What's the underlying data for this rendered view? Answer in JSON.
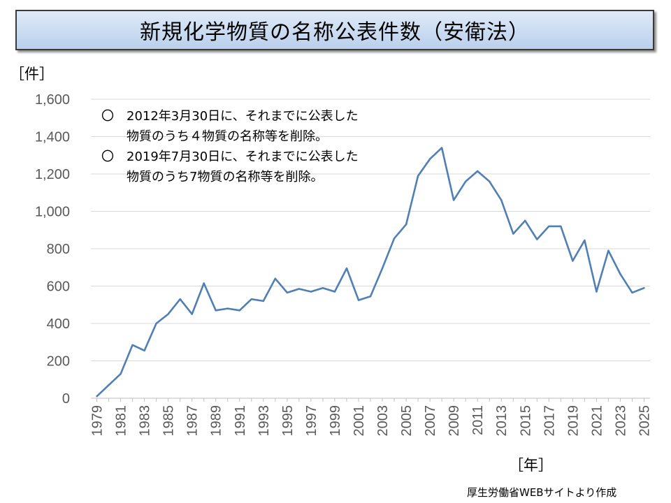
{
  "chart_data": {
    "type": "line",
    "title": "新規化学物質の名称公表件数（安衛法）",
    "ylabel": "［件］",
    "xlabel": "［年］",
    "ylim": [
      0,
      1600
    ],
    "yticks": [
      0,
      200,
      400,
      600,
      800,
      1000,
      1200,
      1400,
      1600
    ],
    "ytick_labels": [
      "0",
      "200",
      "400",
      "600",
      "800",
      "1,000",
      "1,200",
      "1,400",
      "1,600"
    ],
    "xtick_labels": [
      "1979",
      "1981",
      "1983",
      "1985",
      "1987",
      "1989",
      "1991",
      "1993",
      "1995",
      "1997",
      "1999",
      "2001",
      "2003",
      "2005",
      "2007",
      "2009",
      "2011",
      "2013",
      "2015",
      "2017",
      "2019",
      "2021",
      "2023",
      "2025"
    ],
    "grid": true,
    "line_color": "#4f7fb5",
    "series": [
      {
        "name": "名称公表件数",
        "x": [
          1979,
          1980,
          1981,
          1982,
          1983,
          1984,
          1985,
          1986,
          1987,
          1988,
          1989,
          1990,
          1991,
          1992,
          1993,
          1994,
          1995,
          1996,
          1997,
          1998,
          1999,
          2000,
          2001,
          2002,
          2003,
          2004,
          2005,
          2006,
          2007,
          2008,
          2009,
          2010,
          2011,
          2012,
          2013,
          2014,
          2015,
          2016,
          2017,
          2018,
          2019,
          2020,
          2021,
          2022,
          2023,
          2024,
          2025
        ],
        "values": [
          10,
          70,
          130,
          285,
          255,
          400,
          450,
          530,
          450,
          615,
          470,
          480,
          470,
          530,
          520,
          640,
          565,
          585,
          570,
          590,
          570,
          695,
          525,
          545,
          695,
          855,
          930,
          1190,
          1280,
          1340,
          1060,
          1160,
          1215,
          1160,
          1060,
          880,
          950,
          850,
          920,
          920,
          735,
          845,
          570,
          790,
          665,
          565,
          590
        ]
      }
    ],
    "annotations": [
      {
        "mark": "〇",
        "lines": [
          "2012年3月30日に、それまでに公表した",
          "物質のうち４物質の名称等を削除。"
        ]
      },
      {
        "mark": "〇",
        "lines": [
          "2019年7月30日に、それまでに公表した",
          "物質のうち7物質の名称等を削除。"
        ]
      }
    ],
    "source": "厚生労働省WEBサイトより作成"
  }
}
